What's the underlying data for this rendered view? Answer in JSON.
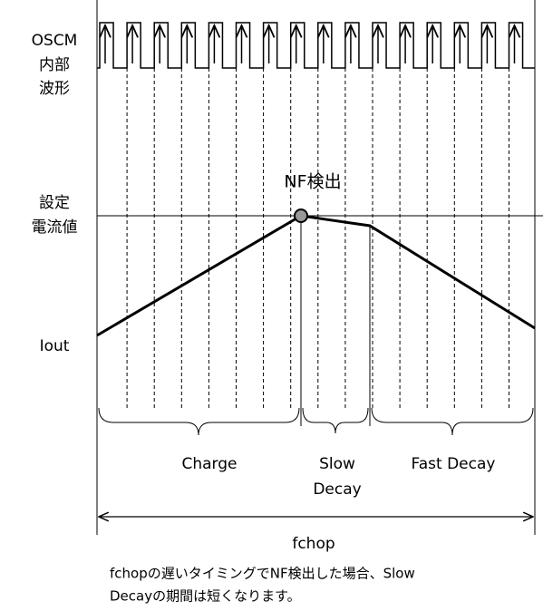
{
  "signal_labels": {
    "oscm": [
      "OSCM",
      "内部",
      "波形"
    ],
    "setpoint": [
      "設定",
      "電流値"
    ],
    "iout": "Iout"
  },
  "nf_detect": "NF検出",
  "phases": {
    "charge": "Charge",
    "slow_decay": [
      "Slow",
      "Decay"
    ],
    "fast_decay": "Fast Decay"
  },
  "period": "fchop",
  "note": [
    "fchopの遅いタイミングでNF検出した場合、Slow",
    "Decayの期間は短くなります。"
  ]
}
